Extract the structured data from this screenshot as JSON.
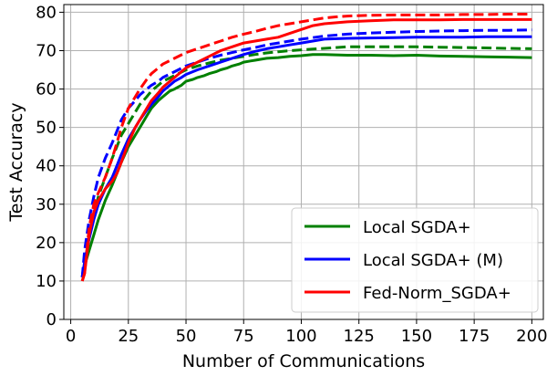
{
  "chart_data": {
    "type": "line",
    "xlabel": "Number of Communications",
    "ylabel": "Test Accuracy",
    "xlim": [
      -3,
      205
    ],
    "ylim": [
      0,
      82
    ],
    "xticks": [
      0,
      25,
      50,
      75,
      100,
      125,
      150,
      175,
      200
    ],
    "yticks": [
      0,
      10,
      20,
      30,
      40,
      50,
      60,
      70,
      80
    ],
    "grid": true,
    "legend": {
      "placement": "bottom-right",
      "entries": [
        "Local SGDA+",
        "Local SGDA+ (M)",
        "Fed-Norm_SGDA+"
      ]
    },
    "series": [
      {
        "name": "Local SGDA+",
        "color": "#008000",
        "style": "solid",
        "x": [
          5,
          6,
          8,
          10,
          12,
          15,
          18,
          20,
          22,
          25,
          28,
          30,
          33,
          35,
          38,
          40,
          43,
          45,
          48,
          50,
          53,
          55,
          58,
          60,
          63,
          65,
          68,
          70,
          73,
          75,
          78,
          80,
          85,
          90,
          95,
          100,
          105,
          110,
          120,
          130,
          140,
          150,
          160,
          170,
          180,
          190,
          200
        ],
        "y": [
          11,
          14,
          18,
          22,
          26,
          31,
          35,
          38,
          41,
          45,
          48,
          50,
          53,
          55,
          57,
          58,
          59.5,
          60,
          61,
          62,
          62.5,
          63,
          63.5,
          64,
          64.5,
          65,
          65.5,
          66,
          66.5,
          67,
          67.3,
          67.5,
          68,
          68.2,
          68.5,
          68.7,
          69,
          69,
          68.8,
          68.8,
          68.7,
          68.8,
          68.6,
          68.5,
          68.4,
          68.3,
          68.2
        ]
      },
      {
        "name": "Local SGDA+ dashed",
        "color": "#008000",
        "style": "dashed",
        "x": [
          5,
          6,
          8,
          10,
          12,
          15,
          18,
          20,
          22,
          25,
          28,
          30,
          33,
          35,
          38,
          40,
          45,
          50,
          55,
          60,
          65,
          70,
          75,
          80,
          85,
          90,
          95,
          100,
          105,
          110,
          115,
          120,
          130,
          140,
          150,
          160,
          170,
          180,
          190,
          200
        ],
        "y": [
          11,
          16,
          22,
          27,
          32,
          37,
          42,
          45,
          48,
          51,
          54,
          56,
          58,
          59.5,
          61,
          62,
          63.5,
          65,
          66,
          66.8,
          67.5,
          68,
          68.5,
          69,
          69.4,
          69.7,
          70,
          70.2,
          70.4,
          70.6,
          70.8,
          71,
          71,
          71,
          71,
          70.9,
          70.8,
          70.7,
          70.6,
          70.5
        ]
      },
      {
        "name": "Local SGDA+ (M)",
        "color": "#0000ff",
        "style": "solid",
        "x": [
          5,
          6,
          8,
          10,
          12,
          15,
          18,
          20,
          22,
          25,
          28,
          30,
          33,
          35,
          38,
          40,
          43,
          45,
          48,
          50,
          55,
          60,
          65,
          70,
          75,
          80,
          85,
          90,
          95,
          100,
          105,
          110,
          120,
          130,
          140,
          150,
          160,
          170,
          180,
          190,
          200
        ],
        "y": [
          11,
          15,
          21,
          26,
          30,
          34,
          37,
          40,
          43,
          47,
          50,
          52,
          54.5,
          56,
          58,
          59.5,
          61,
          62,
          63,
          63.8,
          65,
          66,
          67,
          68,
          69,
          69.8,
          70.5,
          71,
          71.5,
          72,
          72.5,
          73,
          73.2,
          73.3,
          73.4,
          73.5,
          73.5,
          73.5,
          73.6,
          73.6,
          73.6
        ]
      },
      {
        "name": "Local SGDA+ (M) dashed",
        "color": "#0000ff",
        "style": "dashed",
        "x": [
          5,
          6,
          8,
          10,
          12,
          15,
          18,
          20,
          22,
          25,
          28,
          30,
          33,
          35,
          38,
          40,
          45,
          50,
          55,
          60,
          65,
          70,
          75,
          80,
          85,
          90,
          95,
          100,
          110,
          120,
          130,
          140,
          150,
          160,
          170,
          180,
          190,
          200
        ],
        "y": [
          11,
          18,
          26,
          32,
          37,
          42,
          46,
          49,
          52,
          55,
          57,
          58.5,
          60,
          61,
          62,
          63,
          64.5,
          66,
          67,
          68,
          68.8,
          69.5,
          70.2,
          70.8,
          71.5,
          72,
          72.5,
          73,
          73.8,
          74.3,
          74.6,
          74.8,
          75,
          75.1,
          75.2,
          75.3,
          75.3,
          75.4
        ]
      },
      {
        "name": "Fed-Norm_SGDA+",
        "color": "#ff0000",
        "style": "solid",
        "x": [
          5,
          6,
          8,
          10,
          12,
          15,
          18,
          20,
          22,
          25,
          28,
          30,
          33,
          35,
          38,
          40,
          43,
          45,
          48,
          50,
          55,
          60,
          65,
          70,
          75,
          80,
          85,
          90,
          95,
          100,
          105,
          110,
          120,
          130,
          140,
          150,
          160,
          170,
          180,
          190,
          200
        ],
        "y": [
          10,
          12,
          22,
          28,
          31,
          34,
          36,
          38,
          41,
          46,
          50,
          52,
          55,
          57,
          59,
          60.5,
          62,
          63,
          64.5,
          65.5,
          67,
          68.5,
          70,
          71,
          72,
          72.5,
          73,
          73.5,
          74.5,
          75.5,
          76.5,
          77,
          77.5,
          77.8,
          78,
          78,
          78,
          78.1,
          78.1,
          78.1,
          78.1
        ]
      },
      {
        "name": "Fed-Norm_SGDA+ dashed",
        "color": "#ff0000",
        "style": "dashed",
        "x": [
          5,
          6,
          8,
          10,
          12,
          15,
          18,
          20,
          22,
          25,
          28,
          30,
          33,
          35,
          38,
          40,
          45,
          50,
          55,
          60,
          65,
          70,
          75,
          80,
          85,
          90,
          95,
          100,
          105,
          110,
          115,
          120,
          130,
          140,
          150,
          160,
          170,
          180,
          190,
          200
        ],
        "y": [
          10,
          12,
          24,
          30,
          33,
          37,
          42,
          46,
          50,
          55,
          58,
          60,
          62.5,
          64,
          65.5,
          66.5,
          68,
          69.5,
          70.5,
          71.5,
          72.5,
          73.5,
          74.3,
          75,
          75.8,
          76.5,
          77,
          77.5,
          78,
          78.5,
          78.8,
          79,
          79.2,
          79.3,
          79.3,
          79.3,
          79.4,
          79.4,
          79.5,
          79.5
        ]
      }
    ]
  }
}
